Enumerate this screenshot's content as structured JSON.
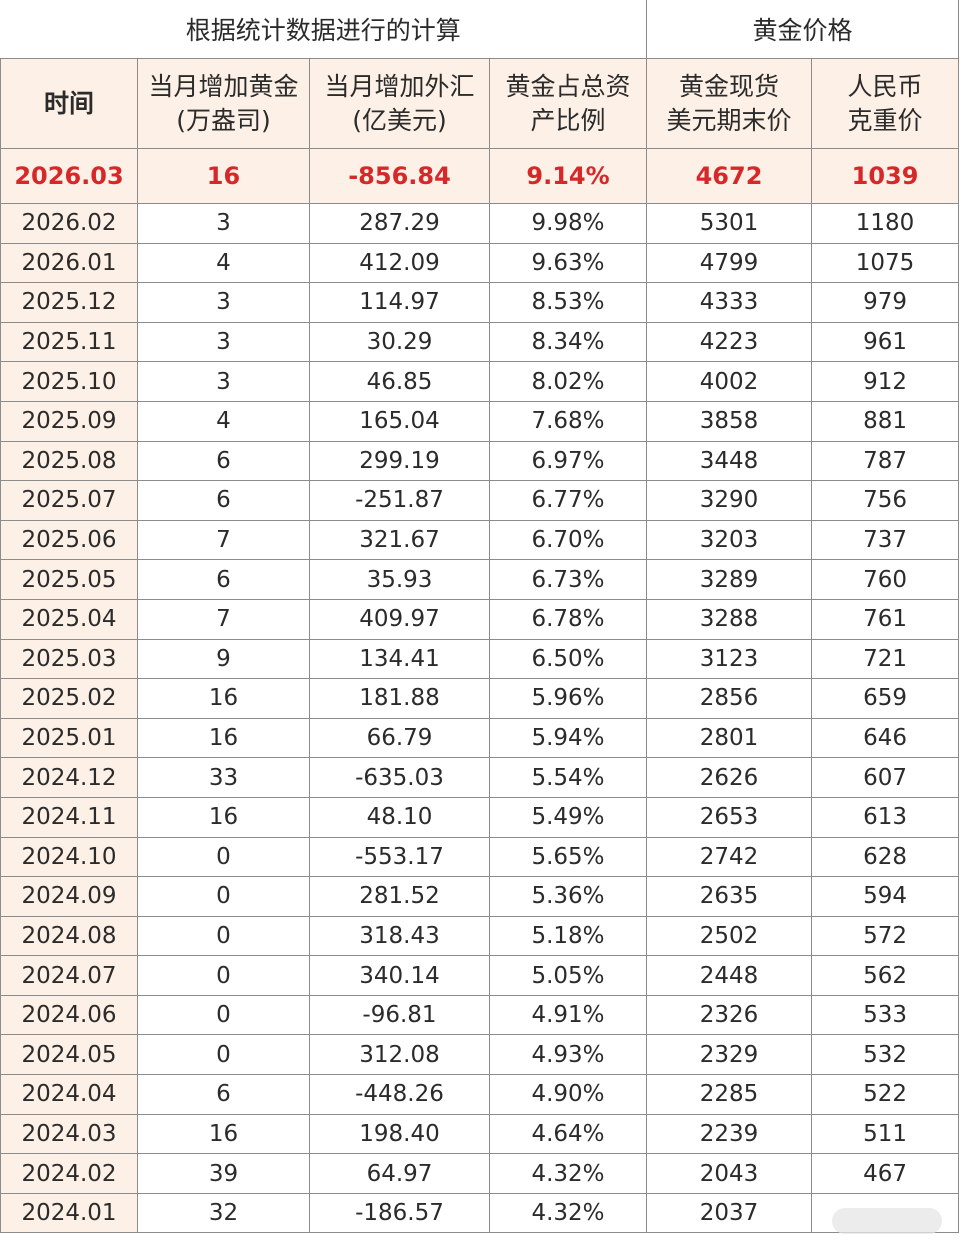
{
  "header": {
    "group_calc": "根据统计数据进行的计算",
    "group_price": "黄金价格",
    "col_time": "时间",
    "col_gold_add_l1": "当月增加黄金",
    "col_gold_add_l2": "(万盎司)",
    "col_fx_add_l1": "当月增加外汇",
    "col_fx_add_l2": "(亿美元)",
    "col_ratio_l1": "黄金占总资",
    "col_ratio_l2": "产比例",
    "col_usd_l1": "黄金现货",
    "col_usd_l2": "美元期末价",
    "col_cny_l1": "人民币",
    "col_cny_l2": "克重价"
  },
  "highlight": [
    "2026.03",
    "16",
    "-856.84",
    "9.14%",
    "4672",
    "1039"
  ],
  "rows": [
    [
      "2026.02",
      "3",
      "287.29",
      "9.98%",
      "5301",
      "1180"
    ],
    [
      "2026.01",
      "4",
      "412.09",
      "9.63%",
      "4799",
      "1075"
    ],
    [
      "2025.12",
      "3",
      "114.97",
      "8.53%",
      "4333",
      "979"
    ],
    [
      "2025.11",
      "3",
      "30.29",
      "8.34%",
      "4223",
      "961"
    ],
    [
      "2025.10",
      "3",
      "46.85",
      "8.02%",
      "4002",
      "912"
    ],
    [
      "2025.09",
      "4",
      "165.04",
      "7.68%",
      "3858",
      "881"
    ],
    [
      "2025.08",
      "6",
      "299.19",
      "6.97%",
      "3448",
      "787"
    ],
    [
      "2025.07",
      "6",
      "-251.87",
      "6.77%",
      "3290",
      "756"
    ],
    [
      "2025.06",
      "7",
      "321.67",
      "6.70%",
      "3203",
      "737"
    ],
    [
      "2025.05",
      "6",
      "35.93",
      "6.73%",
      "3289",
      "760"
    ],
    [
      "2025.04",
      "7",
      "409.97",
      "6.78%",
      "3288",
      "761"
    ],
    [
      "2025.03",
      "9",
      "134.41",
      "6.50%",
      "3123",
      "721"
    ],
    [
      "2025.02",
      "16",
      "181.88",
      "5.96%",
      "2856",
      "659"
    ],
    [
      "2025.01",
      "16",
      "66.79",
      "5.94%",
      "2801",
      "646"
    ],
    [
      "2024.12",
      "33",
      "-635.03",
      "5.54%",
      "2626",
      "607"
    ],
    [
      "2024.11",
      "16",
      "48.10",
      "5.49%",
      "2653",
      "613"
    ],
    [
      "2024.10",
      "0",
      "-553.17",
      "5.65%",
      "2742",
      "628"
    ],
    [
      "2024.09",
      "0",
      "281.52",
      "5.36%",
      "2635",
      "594"
    ],
    [
      "2024.08",
      "0",
      "318.43",
      "5.18%",
      "2502",
      "572"
    ],
    [
      "2024.07",
      "0",
      "340.14",
      "5.05%",
      "2448",
      "562"
    ],
    [
      "2024.06",
      "0",
      "-96.81",
      "4.91%",
      "2326",
      "533"
    ],
    [
      "2024.05",
      "0",
      "312.08",
      "4.93%",
      "2329",
      "532"
    ],
    [
      "2024.04",
      "6",
      "-448.26",
      "4.90%",
      "2285",
      "522"
    ],
    [
      "2024.03",
      "16",
      "198.40",
      "4.64%",
      "2239",
      "511"
    ],
    [
      "2024.02",
      "39",
      "64.97",
      "4.32%",
      "2043",
      "467"
    ],
    [
      "2024.01",
      "32",
      "-186.57",
      "4.32%",
      "2037",
      ""
    ]
  ]
}
